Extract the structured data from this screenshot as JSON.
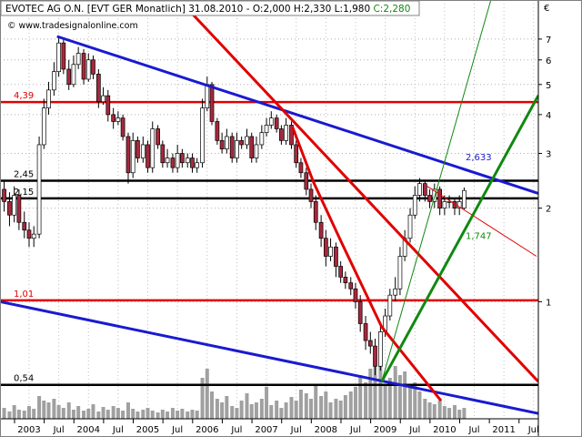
{
  "chart_data": {
    "type": "candlestick",
    "title": "EVOTEC AG O.N. [EVT GER  Monatlich] 31.08.2010 - O:2,000 H:2,330 L:1,980",
    "close_label": "C:2,280",
    "watermark": "© www.tradesignalonline.com",
    "currency": "€",
    "x": [
      2002.58,
      2002.67,
      2002.75,
      2002.83,
      2002.92,
      2003.0,
      2003.08,
      2003.17,
      2003.25,
      2003.33,
      2003.42,
      2003.5,
      2003.58,
      2003.67,
      2003.75,
      2003.83,
      2003.92,
      2004.0,
      2004.08,
      2004.17,
      2004.25,
      2004.33,
      2004.42,
      2004.5,
      2004.58,
      2004.67,
      2004.75,
      2004.83,
      2004.92,
      2005.0,
      2005.08,
      2005.17,
      2005.25,
      2005.33,
      2005.42,
      2005.5,
      2005.58,
      2005.67,
      2005.75,
      2005.83,
      2005.92,
      2006.0,
      2006.08,
      2006.17,
      2006.25,
      2006.33,
      2006.42,
      2006.5,
      2006.58,
      2006.67,
      2006.75,
      2006.83,
      2006.92,
      2007.0,
      2007.08,
      2007.17,
      2007.25,
      2007.33,
      2007.42,
      2007.5,
      2007.58,
      2007.67,
      2007.75,
      2007.83,
      2007.92,
      2008.0,
      2008.08,
      2008.17,
      2008.25,
      2008.33,
      2008.42,
      2008.5,
      2008.58,
      2008.67,
      2008.75,
      2008.83,
      2008.92,
      2009.0,
      2009.08,
      2009.17,
      2009.25,
      2009.33,
      2009.42,
      2009.5,
      2009.58,
      2009.67,
      2009.75,
      2009.83,
      2009.92,
      2010.0,
      2010.08,
      2010.17,
      2010.25,
      2010.33
    ],
    "open": [
      2.3,
      2.1,
      1.9,
      2.2,
      1.8,
      1.7,
      1.6,
      1.65,
      3.2,
      4.2,
      4.8,
      5.5,
      6.8,
      5.6,
      5.0,
      5.8,
      6.3,
      5.2,
      6.0,
      5.4,
      4.4,
      4.6,
      4.0,
      3.8,
      3.9,
      3.4,
      2.6,
      3.3,
      2.9,
      3.2,
      2.7,
      3.6,
      3.2,
      2.8,
      2.9,
      2.7,
      3.0,
      2.8,
      2.9,
      2.7,
      2.8,
      4.2,
      5.0,
      3.8,
      3.3,
      3.1,
      3.4,
      2.9,
      3.3,
      3.2,
      3.4,
      2.9,
      3.2,
      3.5,
      3.7,
      3.9,
      3.6,
      3.3,
      3.7,
      3.2,
      2.8,
      2.6,
      2.3,
      2.1,
      1.8,
      1.6,
      1.4,
      1.5,
      1.3,
      1.2,
      1.15,
      1.1,
      1.0,
      0.85,
      0.75,
      0.72,
      0.62,
      0.8,
      0.9,
      1.05,
      1.1,
      1.4,
      1.6,
      1.9,
      2.2,
      2.4,
      2.2,
      2.1,
      2.3,
      2.0,
      2.1,
      2.1,
      2.0,
      2.0
    ],
    "high": [
      2.45,
      2.25,
      2.35,
      2.3,
      1.95,
      1.8,
      1.75,
      3.4,
      4.5,
      5.1,
      5.9,
      7.1,
      7.0,
      6.0,
      6.2,
      6.6,
      6.5,
      6.3,
      6.2,
      5.6,
      4.9,
      4.8,
      4.2,
      4.1,
      4.0,
      3.5,
      3.5,
      3.4,
      3.4,
      3.3,
      3.8,
      3.7,
      3.3,
      3.1,
      3.0,
      3.2,
      3.1,
      3.0,
      3.0,
      2.9,
      4.5,
      5.3,
      5.1,
      3.9,
      3.5,
      3.6,
      3.5,
      3.5,
      3.4,
      3.6,
      3.5,
      3.4,
      3.7,
      3.9,
      4.1,
      4.0,
      3.7,
      3.9,
      3.8,
      3.3,
      2.9,
      2.7,
      2.4,
      2.2,
      1.9,
      1.7,
      1.6,
      1.55,
      1.35,
      1.25,
      1.2,
      1.15,
      1.05,
      0.9,
      0.8,
      0.76,
      0.85,
      0.95,
      1.1,
      1.2,
      1.5,
      1.7,
      2.0,
      2.35,
      2.5,
      2.45,
      2.3,
      2.4,
      2.35,
      2.2,
      2.2,
      2.15,
      2.2,
      2.33
    ],
    "low": [
      1.95,
      1.75,
      1.8,
      1.7,
      1.6,
      1.5,
      1.5,
      1.6,
      3.1,
      4.0,
      4.6,
      5.3,
      5.4,
      4.8,
      4.9,
      5.6,
      5.0,
      5.1,
      5.2,
      4.2,
      4.3,
      3.8,
      3.6,
      3.7,
      3.3,
      2.4,
      2.5,
      2.8,
      2.8,
      2.6,
      2.6,
      3.1,
      2.7,
      2.7,
      2.6,
      2.6,
      2.7,
      2.7,
      2.6,
      2.6,
      2.7,
      4.1,
      3.7,
      3.2,
      3.0,
      3.0,
      2.8,
      2.8,
      3.1,
      3.1,
      2.8,
      2.8,
      3.1,
      3.4,
      3.6,
      3.5,
      3.2,
      3.2,
      3.1,
      2.7,
      2.5,
      2.2,
      2.0,
      1.7,
      1.5,
      1.3,
      1.35,
      1.2,
      1.15,
      1.1,
      1.05,
      0.95,
      0.8,
      0.7,
      0.68,
      0.58,
      0.6,
      0.77,
      0.87,
      1.0,
      1.05,
      1.35,
      1.55,
      1.85,
      2.1,
      2.1,
      2.0,
      2.0,
      1.9,
      1.9,
      2.0,
      1.9,
      1.9,
      1.98
    ],
    "close": [
      2.1,
      1.9,
      2.2,
      1.8,
      1.7,
      1.6,
      1.65,
      3.2,
      4.2,
      4.8,
      5.5,
      6.8,
      5.6,
      5.0,
      5.8,
      6.3,
      5.2,
      6.0,
      5.4,
      4.4,
      4.6,
      4.0,
      3.8,
      3.9,
      3.4,
      2.6,
      3.3,
      2.9,
      3.2,
      2.7,
      3.6,
      3.2,
      2.8,
      2.9,
      2.7,
      3.0,
      2.8,
      2.9,
      2.7,
      2.8,
      4.2,
      5.0,
      3.8,
      3.3,
      3.1,
      3.4,
      2.9,
      3.3,
      3.2,
      3.4,
      2.9,
      3.2,
      3.5,
      3.7,
      3.9,
      3.6,
      3.3,
      3.7,
      3.2,
      2.8,
      2.6,
      2.3,
      2.1,
      1.8,
      1.6,
      1.4,
      1.5,
      1.3,
      1.2,
      1.15,
      1.1,
      1.0,
      0.85,
      0.75,
      0.72,
      0.62,
      0.8,
      0.9,
      1.05,
      1.1,
      1.4,
      1.6,
      1.9,
      2.2,
      2.4,
      2.2,
      2.1,
      2.3,
      2.0,
      2.1,
      2.1,
      2.0,
      2.1,
      2.28
    ],
    "volume": [
      12,
      8,
      15,
      10,
      9,
      14,
      11,
      25,
      20,
      18,
      22,
      15,
      12,
      18,
      10,
      14,
      9,
      11,
      16,
      8,
      13,
      10,
      14,
      12,
      9,
      18,
      11,
      8,
      10,
      12,
      9,
      7,
      10,
      8,
      12,
      9,
      11,
      8,
      10,
      9,
      45,
      55,
      30,
      22,
      18,
      25,
      14,
      12,
      20,
      28,
      16,
      18,
      22,
      35,
      15,
      20,
      12,
      18,
      24,
      20,
      32,
      28,
      22,
      38,
      25,
      30,
      18,
      22,
      20,
      26,
      30,
      35,
      48,
      40,
      55,
      62,
      70,
      38,
      45,
      58,
      48,
      52,
      36,
      40,
      30,
      22,
      18,
      16,
      20,
      14,
      12,
      15,
      10,
      12
    ],
    "up_color": "#ffffff",
    "down_color": "#a8283c",
    "volume_color": "#a0a0a0",
    "log_scale": true,
    "grid": true,
    "ylim": [
      0.42,
      9.35
    ],
    "yticks": [
      1,
      2,
      3,
      4,
      5,
      6,
      7
    ],
    "xlim": [
      2002.51,
      2011.58
    ],
    "xticks": [
      {
        "value": 2003,
        "label": "2003"
      },
      {
        "value": 2003.5,
        "label": "Jul"
      },
      {
        "value": 2004,
        "label": "2004"
      },
      {
        "value": 2004.5,
        "label": "Jul"
      },
      {
        "value": 2005,
        "label": "2005"
      },
      {
        "value": 2005.5,
        "label": "Jul"
      },
      {
        "value": 2006,
        "label": "2006"
      },
      {
        "value": 2006.5,
        "label": "Jul"
      },
      {
        "value": 2007,
        "label": "2007"
      },
      {
        "value": 2007.5,
        "label": "Jul"
      },
      {
        "value": 2008,
        "label": "2008"
      },
      {
        "value": 2008.5,
        "label": "Jul"
      },
      {
        "value": 2009,
        "label": "2009"
      },
      {
        "value": 2009.5,
        "label": "Jul"
      },
      {
        "value": 2010,
        "label": "2010"
      },
      {
        "value": 2010.5,
        "label": "Jul"
      },
      {
        "value": 2011,
        "label": "2011"
      },
      {
        "value": 2011.5,
        "label": "Jul"
      }
    ],
    "levels": [
      {
        "value": 4.39,
        "label": "4,39",
        "color": "#e00000"
      },
      {
        "value": 2.45,
        "label": "2,45",
        "color": "#000000"
      },
      {
        "value": 2.15,
        "label": "2,15",
        "color": "#000000"
      },
      {
        "value": 1.01,
        "label": "1,01",
        "color": "#e00000"
      },
      {
        "value": 0.54,
        "label": "0,54",
        "color": "#000000"
      }
    ],
    "trendlines": [
      {
        "color": "#1a1ad0",
        "style": "thick",
        "x": [
          2003.47,
          2011.58
        ],
        "y": [
          7.14,
          2.23
        ]
      },
      {
        "color": "#1a1ad0",
        "style": "thick",
        "x": [
          2002.51,
          2011.58
        ],
        "y": [
          1.0,
          0.437
        ]
      },
      {
        "color": "#e00000",
        "style": "thick",
        "x": [
          2005.53,
          2011.58
        ],
        "y": [
          9.35,
          0.553
        ]
      },
      {
        "color": "#e00000",
        "style": "thick",
        "x": [
          2007.44,
          2007.79,
          2008.25,
          2008.94,
          2009.94
        ],
        "y": [
          3.64,
          2.43,
          1.57,
          0.83,
          0.48
        ]
      },
      {
        "color": "#e00000",
        "style": "thin",
        "x": [
          2009.71,
          2011.55
        ],
        "y": [
          2.35,
          1.4
        ]
      },
      {
        "color": "#118811",
        "style": "thick",
        "x": [
          2008.94,
          2011.58
        ],
        "y": [
          0.553,
          4.61
        ]
      },
      {
        "color": "#118811",
        "style": "thin",
        "x": [
          2008.94,
          2010.78
        ],
        "y": [
          0.553,
          9.35
        ]
      }
    ],
    "annotations": [
      {
        "value": 2.633,
        "label": "2,633",
        "color": "#1a1ad0"
      },
      {
        "value": 1.747,
        "label": "1,747",
        "color": "#118811"
      }
    ]
  }
}
